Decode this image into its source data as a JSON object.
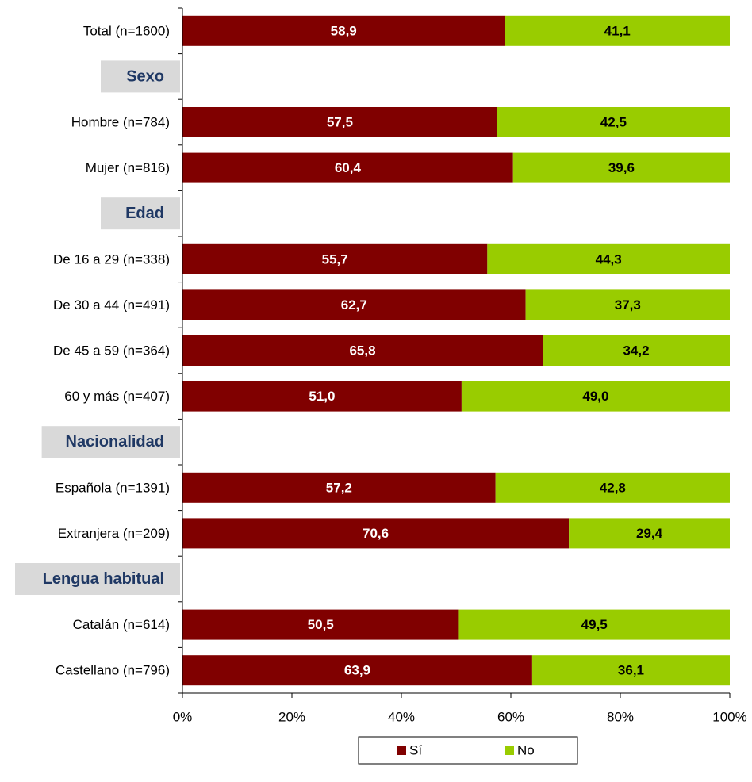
{
  "chart_data": {
    "type": "bar",
    "orientation": "horizontal",
    "stacked": true,
    "percent_scale": true,
    "xlim": [
      0,
      100
    ],
    "xticks": [
      "0%",
      "20%",
      "40%",
      "60%",
      "80%",
      "100%"
    ],
    "grid": false,
    "legend_position": "bottom",
    "rows": [
      {
        "kind": "category",
        "label": "Total (n=1600)",
        "values": [
          58.9,
          41.1
        ],
        "value_labels": [
          "58,9",
          "41,1"
        ]
      },
      {
        "kind": "header",
        "label": "Sexo"
      },
      {
        "kind": "category",
        "label": "Hombre (n=784)",
        "values": [
          57.5,
          42.5
        ],
        "value_labels": [
          "57,5",
          "42,5"
        ]
      },
      {
        "kind": "category",
        "label": "Mujer (n=816)",
        "values": [
          60.4,
          39.6
        ],
        "value_labels": [
          "60,4",
          "39,6"
        ]
      },
      {
        "kind": "header",
        "label": "Edad"
      },
      {
        "kind": "category",
        "label": "De 16 a 29 (n=338)",
        "values": [
          55.7,
          44.3
        ],
        "value_labels": [
          "55,7",
          "44,3"
        ]
      },
      {
        "kind": "category",
        "label": "De 30 a 44 (n=491)",
        "values": [
          62.7,
          37.3
        ],
        "value_labels": [
          "62,7",
          "37,3"
        ]
      },
      {
        "kind": "category",
        "label": "De 45 a 59 (n=364)",
        "values": [
          65.8,
          34.2
        ],
        "value_labels": [
          "65,8",
          "34,2"
        ]
      },
      {
        "kind": "category",
        "label": "60 y más (n=407)",
        "values": [
          51.0,
          49.0
        ],
        "value_labels": [
          "51,0",
          "49,0"
        ]
      },
      {
        "kind": "header",
        "label": "Nacionalidad"
      },
      {
        "kind": "category",
        "label": "Española (n=1391)",
        "values": [
          57.2,
          42.8
        ],
        "value_labels": [
          "57,2",
          "42,8"
        ]
      },
      {
        "kind": "category",
        "label": "Extranjera (n=209)",
        "values": [
          70.6,
          29.4
        ],
        "value_labels": [
          "70,6",
          "29,4"
        ]
      },
      {
        "kind": "header",
        "label": "Lengua habitual"
      },
      {
        "kind": "category",
        "label": "Catalán (n=614)",
        "values": [
          50.5,
          49.5
        ],
        "value_labels": [
          "50,5",
          "49,5"
        ]
      },
      {
        "kind": "category",
        "label": "Castellano (n=796)",
        "values": [
          63.9,
          36.1
        ],
        "value_labels": [
          "63,9",
          "36,1"
        ]
      }
    ],
    "series": [
      {
        "name": "Sí",
        "color": "#800000",
        "label_color": "#ffffff"
      },
      {
        "name": "No",
        "color": "#99CC00",
        "label_color": "#000000"
      }
    ],
    "header_background": "#D9D9D9",
    "header_text_color": "#1F3864"
  }
}
